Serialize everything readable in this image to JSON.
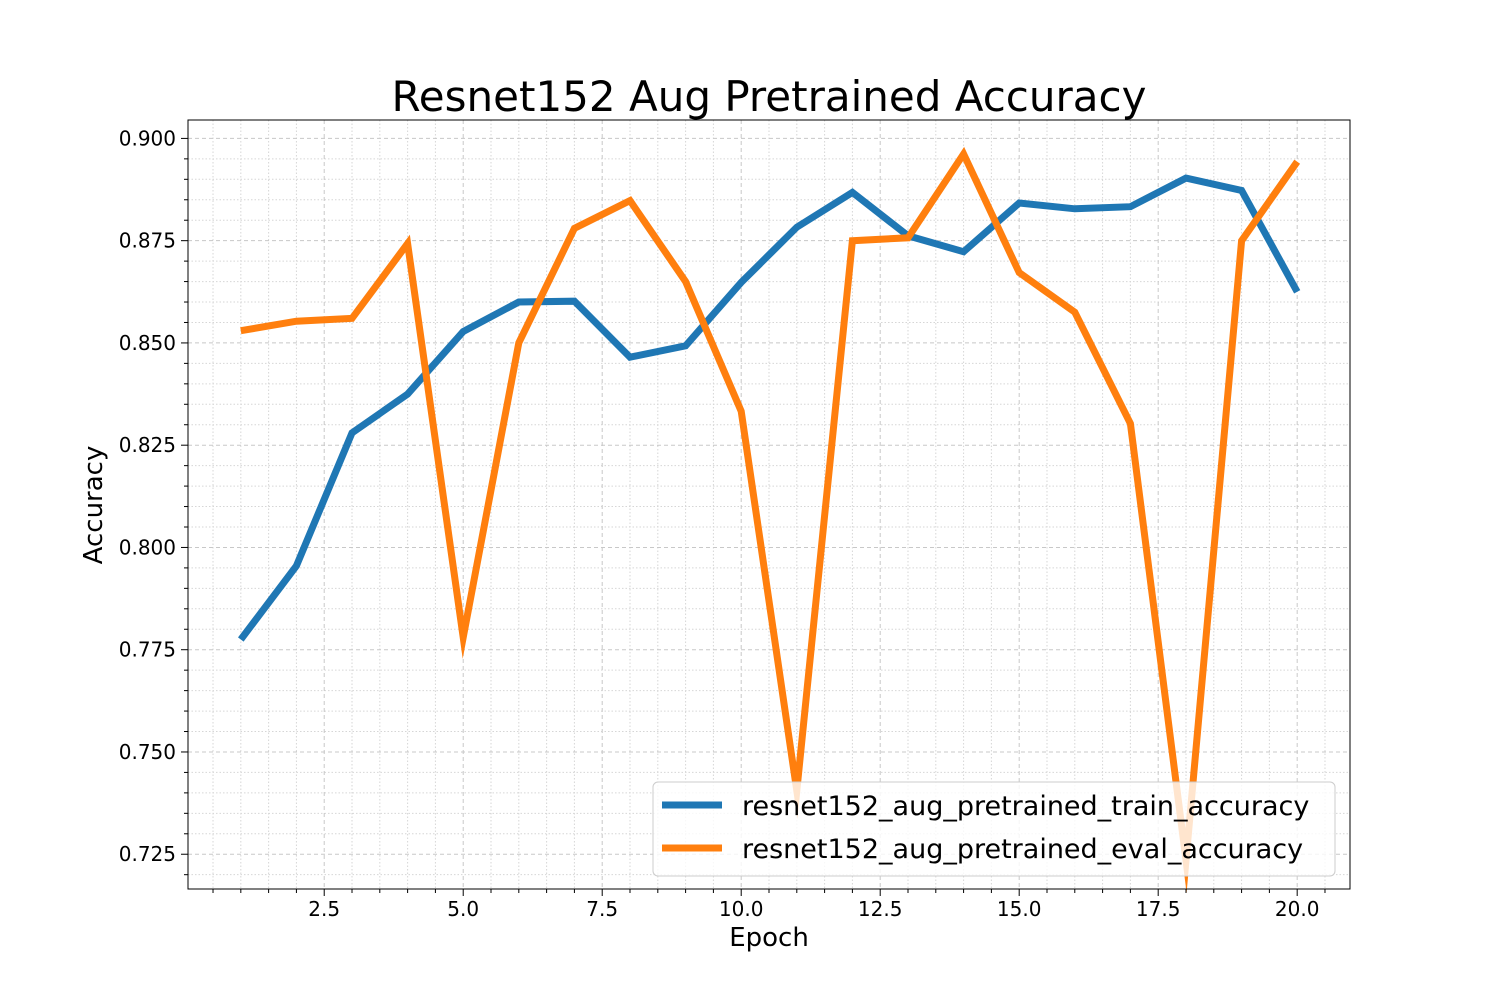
{
  "chart_data": {
    "type": "line",
    "title": "Resnet152 Aug Pretrained Accuracy",
    "xlabel": "Epoch",
    "ylabel": "Accuracy",
    "xlim": [
      0.05,
      20.95
    ],
    "ylim": [
      0.7165,
      0.9045
    ],
    "xticks": [
      2.5,
      5.0,
      7.5,
      10.0,
      12.5,
      15.0,
      17.5,
      20.0
    ],
    "xtick_labels": [
      "2.5",
      "5.0",
      "7.5",
      "10.0",
      "12.5",
      "15.0",
      "17.5",
      "20.0"
    ],
    "yticks": [
      0.725,
      0.75,
      0.775,
      0.8,
      0.825,
      0.85,
      0.875,
      0.9
    ],
    "ytick_labels": [
      "0.725",
      "0.750",
      "0.775",
      "0.800",
      "0.825",
      "0.850",
      "0.875",
      "0.900"
    ],
    "grid": "major dashed, minor dotted",
    "legend_position": "lower-right",
    "x": [
      1,
      2,
      3,
      4,
      5,
      6,
      7,
      8,
      9,
      10,
      11,
      12,
      13,
      14,
      15,
      16,
      17,
      18,
      19,
      20
    ],
    "series": [
      {
        "name": "resnet152_aug_pretrained_train_accuracy",
        "color": "#1f77b4",
        "values": [
          0.7775,
          0.7955,
          0.828,
          0.8375,
          0.8528,
          0.86,
          0.8602,
          0.8465,
          0.8493,
          0.8648,
          0.8783,
          0.8868,
          0.8762,
          0.8723,
          0.8842,
          0.8828,
          0.8833,
          0.8903,
          0.8873,
          0.8625
        ]
      },
      {
        "name": "resnet152_aug_pretrained_eval_accuracy",
        "color": "#ff7f0e",
        "values": [
          0.853,
          0.8553,
          0.856,
          0.8743,
          0.778,
          0.85,
          0.878,
          0.8848,
          0.865,
          0.8333,
          0.7405,
          0.875,
          0.8757,
          0.8962,
          0.8672,
          0.8575,
          0.8303,
          0.7235,
          0.875,
          0.8943
        ]
      }
    ]
  }
}
